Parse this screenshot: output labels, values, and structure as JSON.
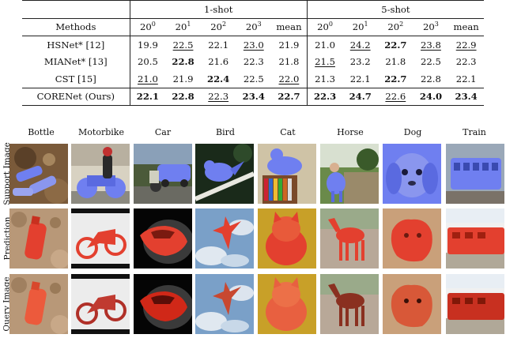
{
  "table": {
    "header_methods": "Methods",
    "group_1shot": "1-shot",
    "group_5shot": "5-shot",
    "fold_base": "20",
    "fold_exps": [
      "0",
      "1",
      "2",
      "3"
    ],
    "mean_label": "mean",
    "rows": [
      {
        "method": "HSNet* [12]",
        "one_shot": [
          "19.9",
          "22.5",
          "22.1",
          "23.0",
          "21.9"
        ],
        "five_shot": [
          "21.0",
          "24.2",
          "22.7",
          "23.8",
          "22.9"
        ]
      },
      {
        "method": "MIANet* [13]",
        "one_shot": [
          "20.5",
          "22.8",
          "21.6",
          "22.3",
          "21.8"
        ],
        "five_shot": [
          "21.5",
          "23.2",
          "21.8",
          "22.5",
          "22.3"
        ]
      },
      {
        "method": "CST [15]",
        "one_shot": [
          "21.0",
          "21.9",
          "22.4",
          "22.5",
          "22.0"
        ],
        "five_shot": [
          "21.3",
          "22.1",
          "22.7",
          "22.8",
          "22.1"
        ]
      },
      {
        "method": "CORENet (Ours)",
        "one_shot": [
          "22.1",
          "22.8",
          "22.3",
          "23.4",
          "22.7"
        ],
        "five_shot": [
          "22.3",
          "24.7",
          "22.6",
          "24.0",
          "23.4"
        ]
      }
    ]
  },
  "figure": {
    "columns": [
      "Bottle",
      "Motorbike",
      "Car",
      "Bird",
      "Cat",
      "Horse",
      "Dog",
      "Train"
    ],
    "row_labels": [
      "Support Image",
      "Prediction",
      "Query Image"
    ]
  },
  "colors": {
    "mask_blue": "#6f7ff0",
    "mask_red": "#e3402f"
  }
}
